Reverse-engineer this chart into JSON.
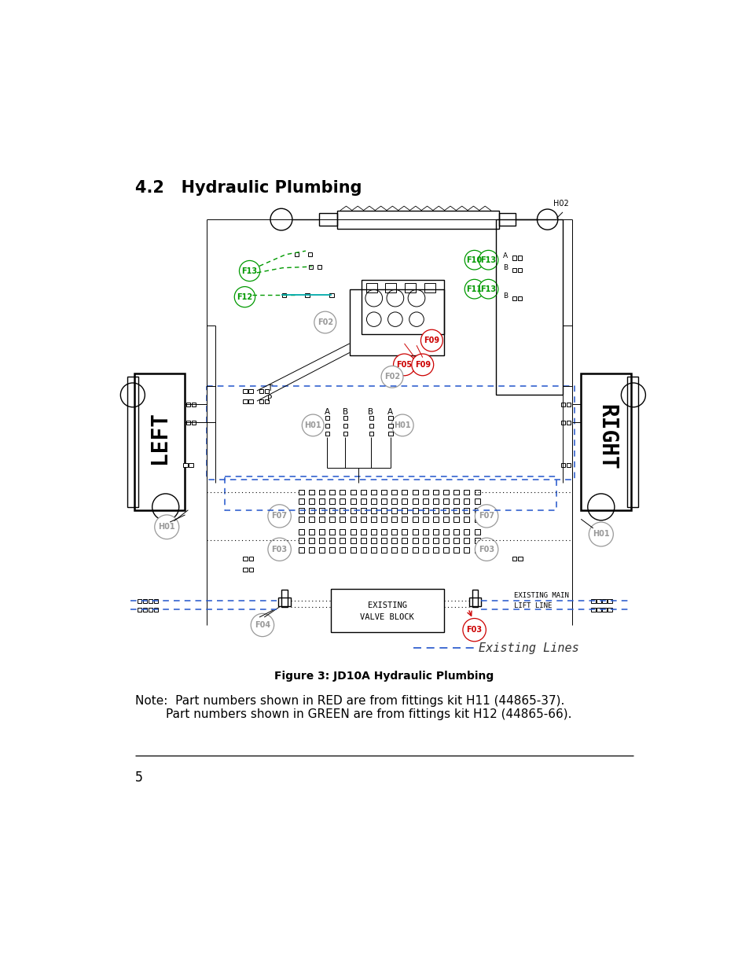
{
  "title": "4.2   Hydraulic Plumbing",
  "figure_caption": "Figure 3: JD10A Hydraulic Plumbing",
  "note_line1": "Note:  Part numbers shown in RED are from fittings kit H11 (44865-37).",
  "note_line2": "        Part numbers shown in GREEN are from fittings kit H12 (44865-66).",
  "page_number": "5",
  "background_color": "#ffffff",
  "title_fontsize": 15,
  "caption_fontsize": 10,
  "note_fontsize": 11,
  "page_fontsize": 12
}
